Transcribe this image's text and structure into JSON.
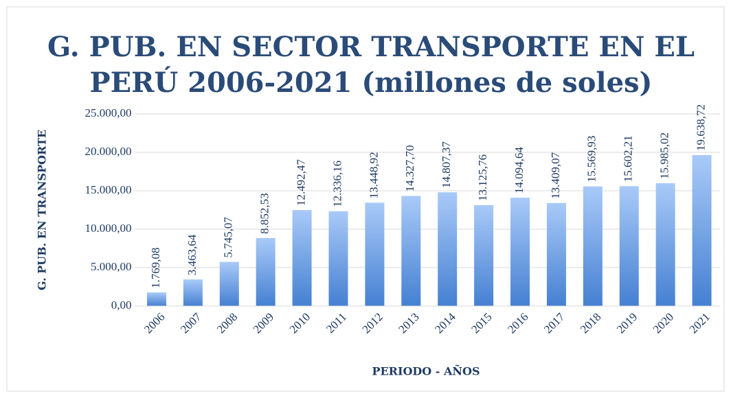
{
  "chart_data": {
    "type": "bar",
    "title": [
      "G. PUB. EN SECTOR TRANSPORTE EN EL",
      "PERÚ 2006-2021 (millones de soles)"
    ],
    "x_label": "PERIODO - AÑOS",
    "y_label": "G. PUB. EN TRANSPORTE",
    "categories": [
      "2006",
      "2007",
      "2008",
      "2009",
      "2010",
      "2011",
      "2012",
      "2013",
      "2014",
      "2015",
      "2016",
      "2017",
      "2018",
      "2019",
      "2020",
      "2021"
    ],
    "values": [
      1769.08,
      3463.64,
      5745.07,
      8852.53,
      12492.47,
      12336.16,
      13448.92,
      14327.7,
      14807.37,
      13125.76,
      14094.64,
      13409.07,
      15569.93,
      15602.21,
      15985.02,
      19638.72
    ],
    "value_labels": [
      "1.769,08",
      "3.463,64",
      "5.745,07",
      "8.852,53",
      "12.492,47",
      "12.336,16",
      "13.448,92",
      "14.327,70",
      "14.807,37",
      "13.125,76",
      "14.094,64",
      "13.409,07",
      "15.569,93",
      "15.602,21",
      "15.985,02",
      "19.638,72"
    ],
    "gradient": [
      "#a9caf8",
      "#4580d2"
    ],
    "ylim": [
      0,
      25000
    ],
    "yticks": [
      {
        "value": 0,
        "label": "0,00"
      },
      {
        "value": 5000,
        "label": "5.000,00"
      },
      {
        "value": 10000,
        "label": "10.000,00"
      },
      {
        "value": 15000,
        "label": "15.000,00"
      },
      {
        "value": 20000,
        "label": "20.000,00"
      },
      {
        "value": 25000,
        "label": "25.000,00"
      }
    ],
    "grid": true
  }
}
